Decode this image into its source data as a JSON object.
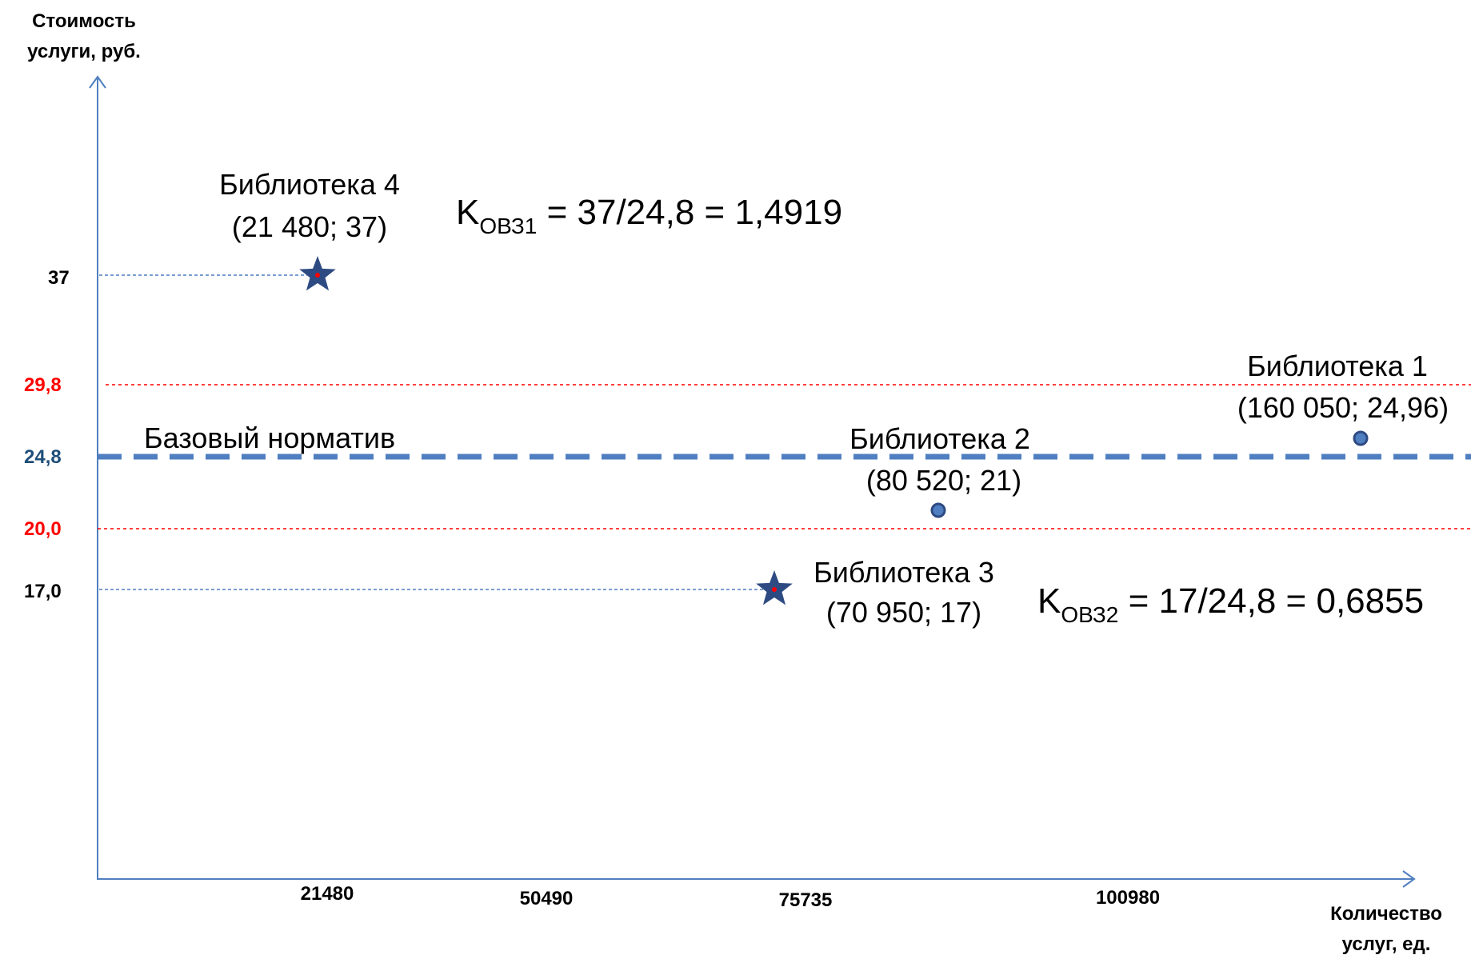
{
  "chart_data": {
    "type": "scatter",
    "y_axis_title": [
      "Стоимость",
      "услуги, руб."
    ],
    "x_axis_title": [
      "Количество",
      "услуг, ед."
    ],
    "x_ticks": [
      "21480",
      "50490",
      "75735",
      "100980"
    ],
    "y_ticks": [
      {
        "label": "37",
        "value": 37,
        "color": "#000000"
      },
      {
        "label": "29,8",
        "value": 29.8,
        "color": "#ff0000"
      },
      {
        "label": "24,8",
        "value": 24.8,
        "color": "#1f4e79"
      },
      {
        "label": "20,0",
        "value": 20.0,
        "color": "#ff0000"
      },
      {
        "label": "17,0",
        "value": 17.0,
        "color": "#000000"
      }
    ],
    "reference_lines": [
      {
        "name": "upper",
        "value": 29.8,
        "color": "#ff0000",
        "style": "dotted"
      },
      {
        "name": "base",
        "value": 24.8,
        "color": "#4f7fc0",
        "style": "dashed",
        "label": "Базовый норматив"
      },
      {
        "name": "lower",
        "value": 20.0,
        "color": "#ff0000",
        "style": "dotted"
      }
    ],
    "points": [
      {
        "name": "Библиотека 1",
        "coords": "(160 050; 24,96)",
        "x": 160050,
        "y": 24.96,
        "marker": "circle"
      },
      {
        "name": "Библиотека  2",
        "coords": "(80 520; 21)",
        "x": 80520,
        "y": 21,
        "marker": "circle"
      },
      {
        "name": "Библиотека 3",
        "coords": "(70 950; 17)",
        "x": 70950,
        "y": 17,
        "marker": "star"
      },
      {
        "name": "Библиотека 4",
        "coords": "(21 480; 37)",
        "x": 21480,
        "y": 37,
        "marker": "star"
      }
    ],
    "formulas": [
      {
        "k": "K",
        "sub": "ОВЗ1",
        "text": " = 37/24,8 = 1,4919"
      },
      {
        "k": "K",
        "sub": "ОВЗ2",
        "text": " = 17/24,8 = 0,6855"
      }
    ],
    "colors": {
      "axis": "#4f7fc0",
      "marker": "#2e4a82",
      "star_center": "#ff0000"
    }
  }
}
